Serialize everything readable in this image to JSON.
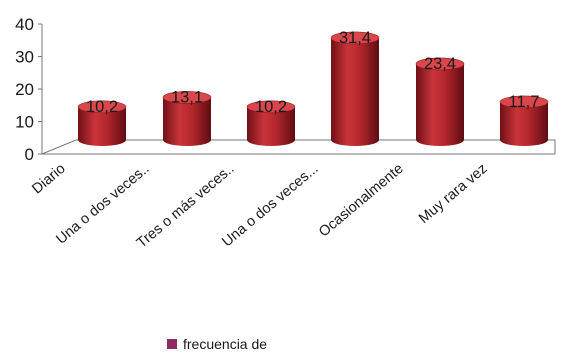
{
  "chart_data": {
    "type": "bar",
    "title": "",
    "xlabel": "",
    "ylabel": "",
    "categories": [
      "Diario",
      "Una o dos veces..",
      "Tres o más veces..",
      "Una o dos veces...",
      "Ocasionalmente",
      "Muy rara vez"
    ],
    "series": [
      {
        "name": "frecuencia de",
        "values": [
          10.2,
          13.1,
          10.2,
          31.4,
          23.4,
          11.7
        ],
        "value_labels": [
          "10,2",
          "13,1",
          "10,2",
          "31,4",
          "23,4",
          "11,7"
        ],
        "color": "#b3232a"
      }
    ],
    "yticks": [
      "0",
      "10",
      "20",
      "30",
      "40"
    ],
    "ylim": [
      0,
      40
    ],
    "grid": false,
    "three_d": true,
    "legend": {
      "position": "bottom",
      "swatch_color": "#8e2a63"
    }
  }
}
